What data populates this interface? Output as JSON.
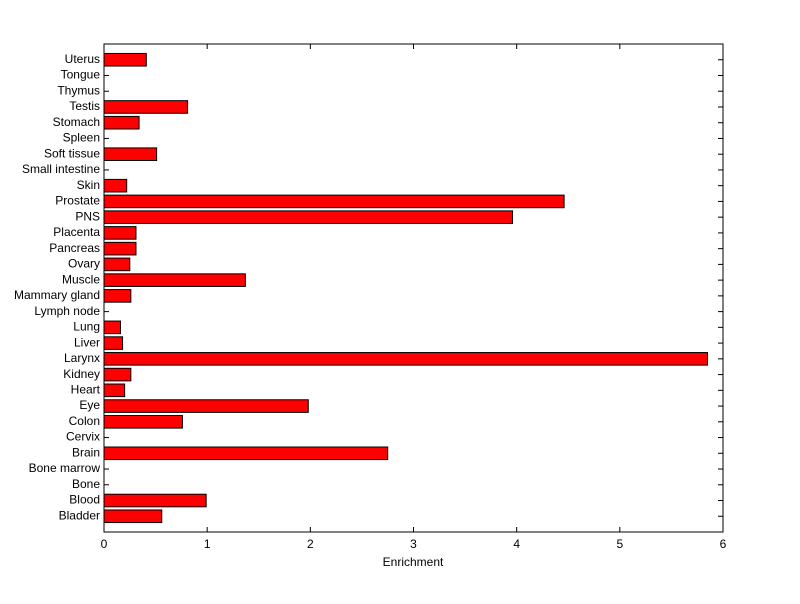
{
  "chart_data": {
    "type": "barh",
    "xlabel": "Enrichment",
    "categories": [
      "Bladder",
      "Blood",
      "Bone",
      "Bone marrow",
      "Brain",
      "Cervix",
      "Colon",
      "Eye",
      "Heart",
      "Kidney",
      "Larynx",
      "Liver",
      "Lung",
      "Lymph node",
      "Mammary gland",
      "Muscle",
      "Ovary",
      "Pancreas",
      "Placenta",
      "PNS",
      "Prostate",
      "Skin",
      "Small intestine",
      "Soft tissue",
      "Spleen",
      "Stomach",
      "Testis",
      "Thymus",
      "Tongue",
      "Uterus"
    ],
    "values": [
      0.56,
      0.99,
      0,
      0,
      2.75,
      0,
      0.76,
      1.98,
      0.2,
      0.26,
      5.85,
      0.18,
      0.16,
      0,
      0.26,
      1.37,
      0.25,
      0.31,
      0.31,
      3.96,
      4.46,
      0.22,
      0,
      0.51,
      0,
      0.34,
      0.81,
      0,
      0,
      0.41
    ],
    "color": "#ff0000",
    "xlim": [
      0,
      6
    ],
    "xticks": [
      0,
      1,
      2,
      3,
      4,
      5,
      6
    ]
  }
}
